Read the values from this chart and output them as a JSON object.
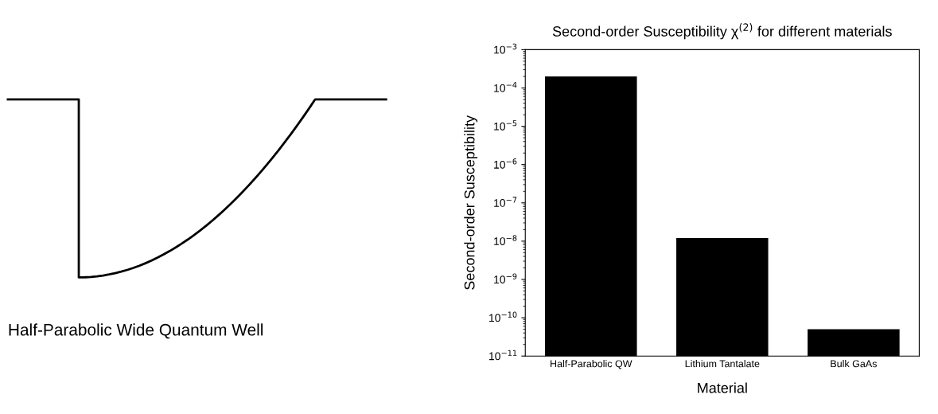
{
  "chart_data": [
    {
      "type": "other",
      "annotations": [
        "Half-Parabolic Wide Quantum Well"
      ]
    },
    {
      "type": "bar",
      "title": "Second-order Susceptibility χ$^{(2)}$ for different materials",
      "xlabel": "Material",
      "ylabel": "Second-order Susceptibility",
      "categories": [
        "Half-Parabolic QW",
        "Lithium Tantalate",
        "Bulk GaAs"
      ],
      "values": [
        0.0002,
        1.2e-08,
        5e-11
      ],
      "color": "#000000",
      "log": "y",
      "ylim": [
        1e-11,
        0.001
      ],
      "yticks": [
        {
          "value": 1e-11,
          "label": "10$^{−11}$"
        },
        {
          "value": 1e-10,
          "label": "10$^{−10}$"
        },
        {
          "value": 1e-09,
          "label": "10$^{−9}$"
        },
        {
          "value": 1e-08,
          "label": "10$^{−8}$"
        },
        {
          "value": 1e-07,
          "label": "10$^{−7}$"
        },
        {
          "value": 1e-06,
          "label": "10$^{−6}$"
        },
        {
          "value": 1e-05,
          "label": "10$^{−5}$"
        },
        {
          "value": 0.0001,
          "label": "10$^{−4}$"
        },
        {
          "value": 0.001,
          "label": "10$^{−3}$"
        }
      ],
      "grid": false,
      "legend": false
    }
  ]
}
